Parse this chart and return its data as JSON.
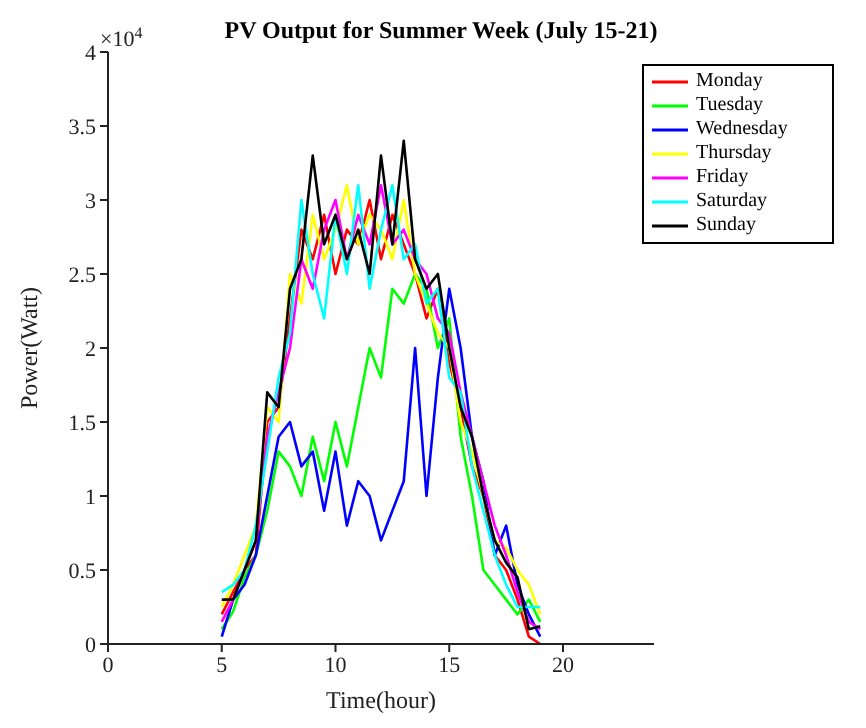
{
  "chart_data": {
    "type": "line",
    "title": "PV Output for Summer Week (July 15-21)",
    "xlabel": "Time(hour)",
    "ylabel": "Power(Watt)",
    "annotations": [
      "×10$^{4}$"
    ],
    "x": [
      5,
      5.5,
      6,
      6.5,
      7,
      7.5,
      8,
      8.5,
      9,
      9.5,
      10,
      10.5,
      11,
      11.5,
      12,
      12.5,
      13,
      13.5,
      14,
      14.5,
      15,
      15.5,
      16,
      16.5,
      17,
      17.5,
      18,
      18.5,
      19
    ],
    "series": [
      {
        "name": "Monday",
        "color": "#ff0000",
        "values": [
          0.2,
          0.35,
          0.5,
          0.6,
          1.5,
          1.6,
          2.2,
          2.8,
          2.6,
          2.9,
          2.5,
          2.8,
          2.7,
          3.0,
          2.6,
          2.9,
          2.7,
          2.5,
          2.2,
          2.4,
          1.9,
          1.6,
          1.2,
          1.0,
          0.6,
          0.5,
          0.3,
          0.05,
          0.0
        ]
      },
      {
        "name": "Tuesday",
        "color": "#00ff00",
        "values": [
          0.1,
          0.22,
          0.45,
          0.6,
          0.9,
          1.3,
          1.2,
          1.0,
          1.4,
          1.1,
          1.5,
          1.2,
          1.6,
          2.0,
          1.8,
          2.4,
          2.3,
          2.5,
          2.4,
          2.0,
          2.2,
          1.4,
          1.0,
          0.5,
          0.4,
          0.3,
          0.2,
          0.3,
          0.15
        ]
      },
      {
        "name": "Wednesday",
        "color": "#0000ff",
        "values": [
          0.05,
          0.3,
          0.4,
          0.6,
          1.0,
          1.4,
          1.5,
          1.2,
          1.3,
          0.9,
          1.3,
          0.8,
          1.1,
          1.0,
          0.7,
          0.9,
          1.1,
          2.0,
          1.0,
          1.8,
          2.4,
          2.0,
          1.4,
          1.1,
          0.6,
          0.8,
          0.4,
          0.2,
          0.05
        ]
      },
      {
        "name": "Thursday",
        "color": "#ffff00",
        "values": [
          0.25,
          0.4,
          0.6,
          0.8,
          1.6,
          1.5,
          2.5,
          2.3,
          2.9,
          2.6,
          2.8,
          3.1,
          2.7,
          2.9,
          2.8,
          2.6,
          3.0,
          2.5,
          2.3,
          2.1,
          2.0,
          1.5,
          1.3,
          1.0,
          0.7,
          0.65,
          0.5,
          0.4,
          0.2
        ]
      },
      {
        "name": "Friday",
        "color": "#ff00ff",
        "values": [
          0.15,
          0.3,
          0.5,
          0.7,
          1.4,
          1.7,
          2.0,
          2.6,
          2.4,
          2.8,
          3.0,
          2.6,
          2.9,
          2.7,
          3.1,
          2.7,
          2.8,
          2.6,
          2.5,
          2.2,
          2.1,
          1.7,
          1.4,
          1.1,
          0.8,
          0.6,
          0.35,
          0.15,
          0.1
        ]
      },
      {
        "name": "Saturday",
        "color": "#00ffff",
        "values": [
          0.35,
          0.4,
          0.5,
          0.8,
          1.3,
          1.8,
          2.1,
          3.0,
          2.5,
          2.2,
          2.9,
          2.5,
          3.1,
          2.4,
          2.8,
          3.1,
          2.6,
          2.7,
          2.3,
          2.4,
          1.8,
          1.7,
          1.2,
          0.9,
          0.6,
          0.4,
          0.25,
          0.25,
          0.25
        ]
      },
      {
        "name": "Sunday",
        "color": "#000000",
        "values": [
          0.3,
          0.3,
          0.5,
          0.7,
          1.7,
          1.6,
          2.4,
          2.6,
          3.3,
          2.7,
          2.9,
          2.6,
          2.8,
          2.5,
          3.3,
          2.7,
          3.4,
          2.6,
          2.4,
          2.5,
          2.0,
          1.6,
          1.4,
          1.0,
          0.7,
          0.55,
          0.45,
          0.1,
          0.12
        ]
      }
    ],
    "xlim": [
      0,
      24
    ],
    "xticks": [
      0,
      5,
      10,
      15,
      20
    ],
    "ylim": [
      0,
      4
    ],
    "yticks": [
      0,
      0.5,
      1,
      1.5,
      2,
      2.5,
      3,
      3.5,
      4
    ],
    "grid": false,
    "legend": "top right",
    "marker": "none",
    "line_style": "solid"
  }
}
